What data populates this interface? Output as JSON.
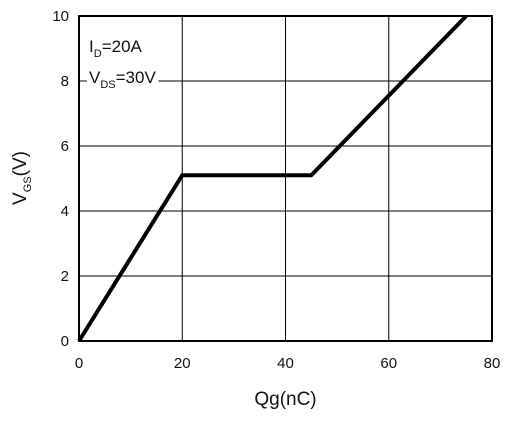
{
  "chart_data": {
    "type": "line",
    "xlabel": "Qg(nC)",
    "ylabel": {
      "main": "V",
      "sub": "GS",
      "suffix": "(V)"
    },
    "xlim": [
      0,
      80
    ],
    "ylim": [
      0,
      10
    ],
    "x_ticks": [
      0,
      20,
      40,
      60,
      80
    ],
    "y_ticks": [
      0,
      2,
      4,
      6,
      8,
      10
    ],
    "x_tick_labels": [
      "0",
      "20",
      "40",
      "60",
      "80"
    ],
    "y_tick_labels": [
      "0",
      "2",
      "4",
      "6",
      "8",
      "10"
    ],
    "grid": true,
    "series": [
      {
        "x": [
          0,
          20,
          45,
          75
        ],
        "y": [
          0,
          5.1,
          5.1,
          10
        ],
        "color": "#000000"
      }
    ],
    "annotations": [
      {
        "main": "I",
        "sub": "D",
        "rest": "=20A"
      },
      {
        "main": "V",
        "sub": "DS",
        "rest": "=30V"
      }
    ]
  }
}
